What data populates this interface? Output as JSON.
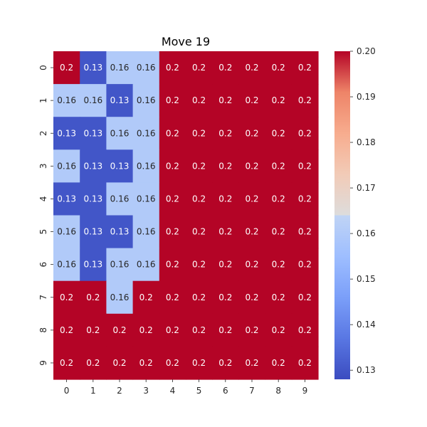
{
  "chart_data": {
    "type": "heatmap",
    "title": "Move 19",
    "x_ticks": [
      "0",
      "1",
      "2",
      "3",
      "4",
      "5",
      "6",
      "7",
      "8",
      "9"
    ],
    "y_ticks": [
      "0",
      "1",
      "2",
      "3",
      "4",
      "5",
      "6",
      "7",
      "8",
      "9"
    ],
    "values": [
      [
        0.2,
        0.13,
        0.16,
        0.16,
        0.2,
        0.2,
        0.2,
        0.2,
        0.2,
        0.2
      ],
      [
        0.16,
        0.16,
        0.13,
        0.16,
        0.2,
        0.2,
        0.2,
        0.2,
        0.2,
        0.2
      ],
      [
        0.13,
        0.13,
        0.16,
        0.16,
        0.2,
        0.2,
        0.2,
        0.2,
        0.2,
        0.2
      ],
      [
        0.16,
        0.13,
        0.13,
        0.16,
        0.2,
        0.2,
        0.2,
        0.2,
        0.2,
        0.2
      ],
      [
        0.13,
        0.13,
        0.16,
        0.16,
        0.2,
        0.2,
        0.2,
        0.2,
        0.2,
        0.2
      ],
      [
        0.16,
        0.13,
        0.13,
        0.16,
        0.2,
        0.2,
        0.2,
        0.2,
        0.2,
        0.2
      ],
      [
        0.16,
        0.13,
        0.16,
        0.16,
        0.2,
        0.2,
        0.2,
        0.2,
        0.2,
        0.2
      ],
      [
        0.2,
        0.2,
        0.16,
        0.2,
        0.2,
        0.2,
        0.2,
        0.2,
        0.2,
        0.2
      ],
      [
        0.2,
        0.2,
        0.2,
        0.2,
        0.2,
        0.2,
        0.2,
        0.2,
        0.2,
        0.2
      ],
      [
        0.2,
        0.2,
        0.2,
        0.2,
        0.2,
        0.2,
        0.2,
        0.2,
        0.2,
        0.2
      ]
    ],
    "colormap": "coolwarm",
    "colorbar": {
      "range": [
        0.128,
        0.2
      ],
      "ticks": [
        "0.13",
        "0.14",
        "0.15",
        "0.16",
        "0.17",
        "0.18",
        "0.19",
        "0.20"
      ],
      "tick_values": [
        0.13,
        0.14,
        0.15,
        0.16,
        0.17,
        0.18,
        0.19,
        0.2
      ]
    },
    "grid": false,
    "legend": "none"
  }
}
